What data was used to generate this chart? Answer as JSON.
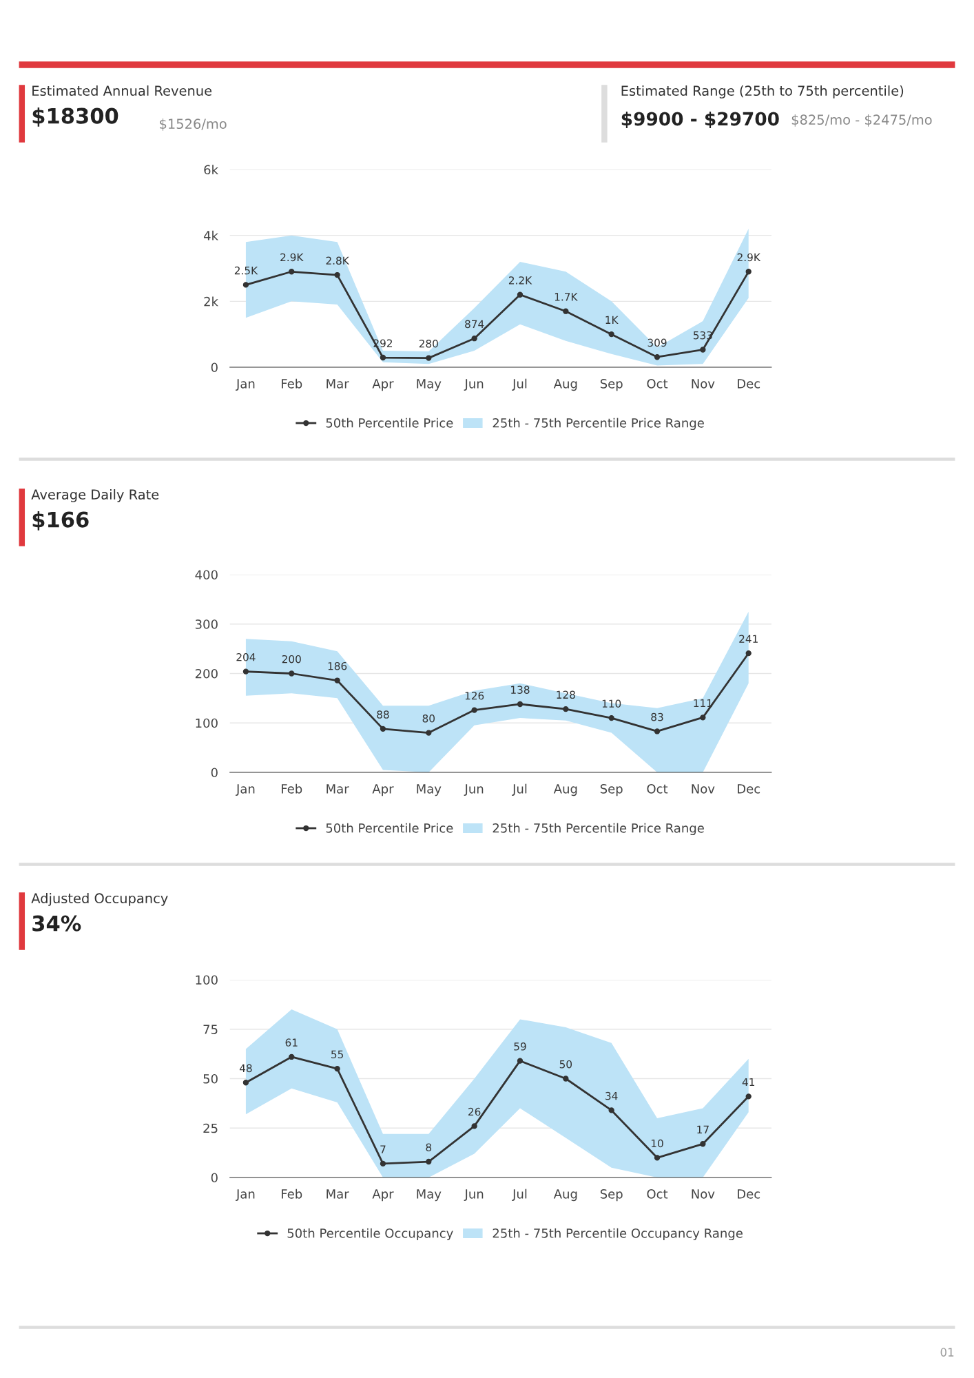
{
  "chart_data": [
    {
      "type": "line",
      "title": "Estimated Annual Revenue",
      "subtitle": "$18300",
      "annotations": [
        "$1526/mo",
        "Estimated Range (25th to 75th percentile)",
        "$9900 - $29700",
        "$825/mo - $2475/mo"
      ],
      "categories": [
        "Jan",
        "Feb",
        "Mar",
        "Apr",
        "May",
        "Jun",
        "Jul",
        "Aug",
        "Sep",
        "Oct",
        "Nov",
        "Dec"
      ],
      "series": [
        {
          "name": "50th Percentile Price",
          "color": "#333333",
          "marker": "circle",
          "values": [
            2500,
            2900,
            2800,
            292,
            280,
            874,
            2200,
            1700,
            1000,
            309,
            533,
            2900
          ],
          "value_labels": [
            "2.5K",
            "2.9K",
            "2.8K",
            "292",
            "280",
            "874",
            "2.2K",
            "1.7K",
            "1K",
            "309",
            "533",
            "2.9K"
          ]
        },
        {
          "name": "25th - 75th Percentile Price Range",
          "color": "#bde3f7",
          "values": [
            null,
            null,
            null,
            null,
            null,
            null,
            null,
            null,
            null,
            null,
            null,
            null
          ],
          "lower": [
            1500,
            2000,
            1900,
            150,
            100,
            500,
            1300,
            800,
            400,
            50,
            100,
            2100
          ],
          "upper": [
            3800,
            4000,
            3800,
            500,
            480,
            1800,
            3200,
            2900,
            2000,
            600,
            1400,
            4200
          ]
        }
      ],
      "ylim": [
        0,
        6000
      ],
      "yticks": [
        0,
        {
          "value": 2000,
          "label": "2k"
        },
        {
          "value": 4000,
          "label": "4k"
        },
        {
          "value": 6000,
          "label": "6k"
        }
      ],
      "grid": "y",
      "legend": "bottom",
      "line_style": "solid"
    },
    {
      "type": "line",
      "title": "Average Daily Rate",
      "subtitle": "$166",
      "categories": [
        "Jan",
        "Feb",
        "Mar",
        "Apr",
        "May",
        "Jun",
        "Jul",
        "Aug",
        "Sep",
        "Oct",
        "Nov",
        "Dec"
      ],
      "series": [
        {
          "name": "50th Percentile Price",
          "color": "#333333",
          "marker": "circle",
          "values": [
            204,
            200,
            186,
            88,
            80,
            126,
            138,
            128,
            110,
            83,
            111,
            241
          ],
          "value_labels": [
            "204",
            "200",
            "186",
            "88",
            "80",
            "126",
            "138",
            "128",
            "110",
            "83",
            "111",
            "241"
          ]
        },
        {
          "name": "25th - 75th Percentile Price Range",
          "color": "#bde3f7",
          "values": [
            null,
            null,
            null,
            null,
            null,
            null,
            null,
            null,
            null,
            null,
            null,
            null
          ],
          "lower": [
            155,
            160,
            150,
            5,
            0,
            95,
            110,
            105,
            80,
            0,
            0,
            180
          ],
          "upper": [
            270,
            265,
            245,
            135,
            135,
            165,
            180,
            160,
            140,
            130,
            150,
            325
          ]
        }
      ],
      "ylim": [
        0,
        400
      ],
      "yticks": [
        0,
        100,
        200,
        300,
        400
      ],
      "grid": "y",
      "legend": "bottom",
      "line_style": "solid"
    },
    {
      "type": "line",
      "title": "Adjusted Occupancy",
      "subtitle": "34%",
      "annotations": [
        "01"
      ],
      "categories": [
        "Jan",
        "Feb",
        "Mar",
        "Apr",
        "May",
        "Jun",
        "Jul",
        "Aug",
        "Sep",
        "Oct",
        "Nov",
        "Dec"
      ],
      "series": [
        {
          "name": "50th Percentile Occupancy",
          "color": "#333333",
          "marker": "circle",
          "values": [
            48,
            61,
            55,
            7,
            8,
            26,
            59,
            50,
            34,
            10,
            17,
            41
          ],
          "value_labels": [
            "48",
            "61",
            "55",
            "7",
            "8",
            "26",
            "59",
            "50",
            "34",
            "10",
            "17",
            "41"
          ]
        },
        {
          "name": "25th - 75th Percentile Occupancy Range",
          "color": "#bde3f7",
          "values": [
            null,
            null,
            null,
            null,
            null,
            null,
            null,
            null,
            null,
            null,
            null,
            null
          ],
          "lower": [
            32,
            45,
            38,
            0,
            0,
            12,
            35,
            20,
            5,
            0,
            0,
            33
          ],
          "upper": [
            65,
            85,
            75,
            22,
            22,
            50,
            80,
            76,
            68,
            30,
            35,
            60
          ]
        }
      ],
      "ylim": [
        0,
        100
      ],
      "yticks": [
        0,
        25,
        50,
        75,
        100
      ],
      "grid": "y",
      "legend": "bottom",
      "line_style": "solid"
    }
  ]
}
